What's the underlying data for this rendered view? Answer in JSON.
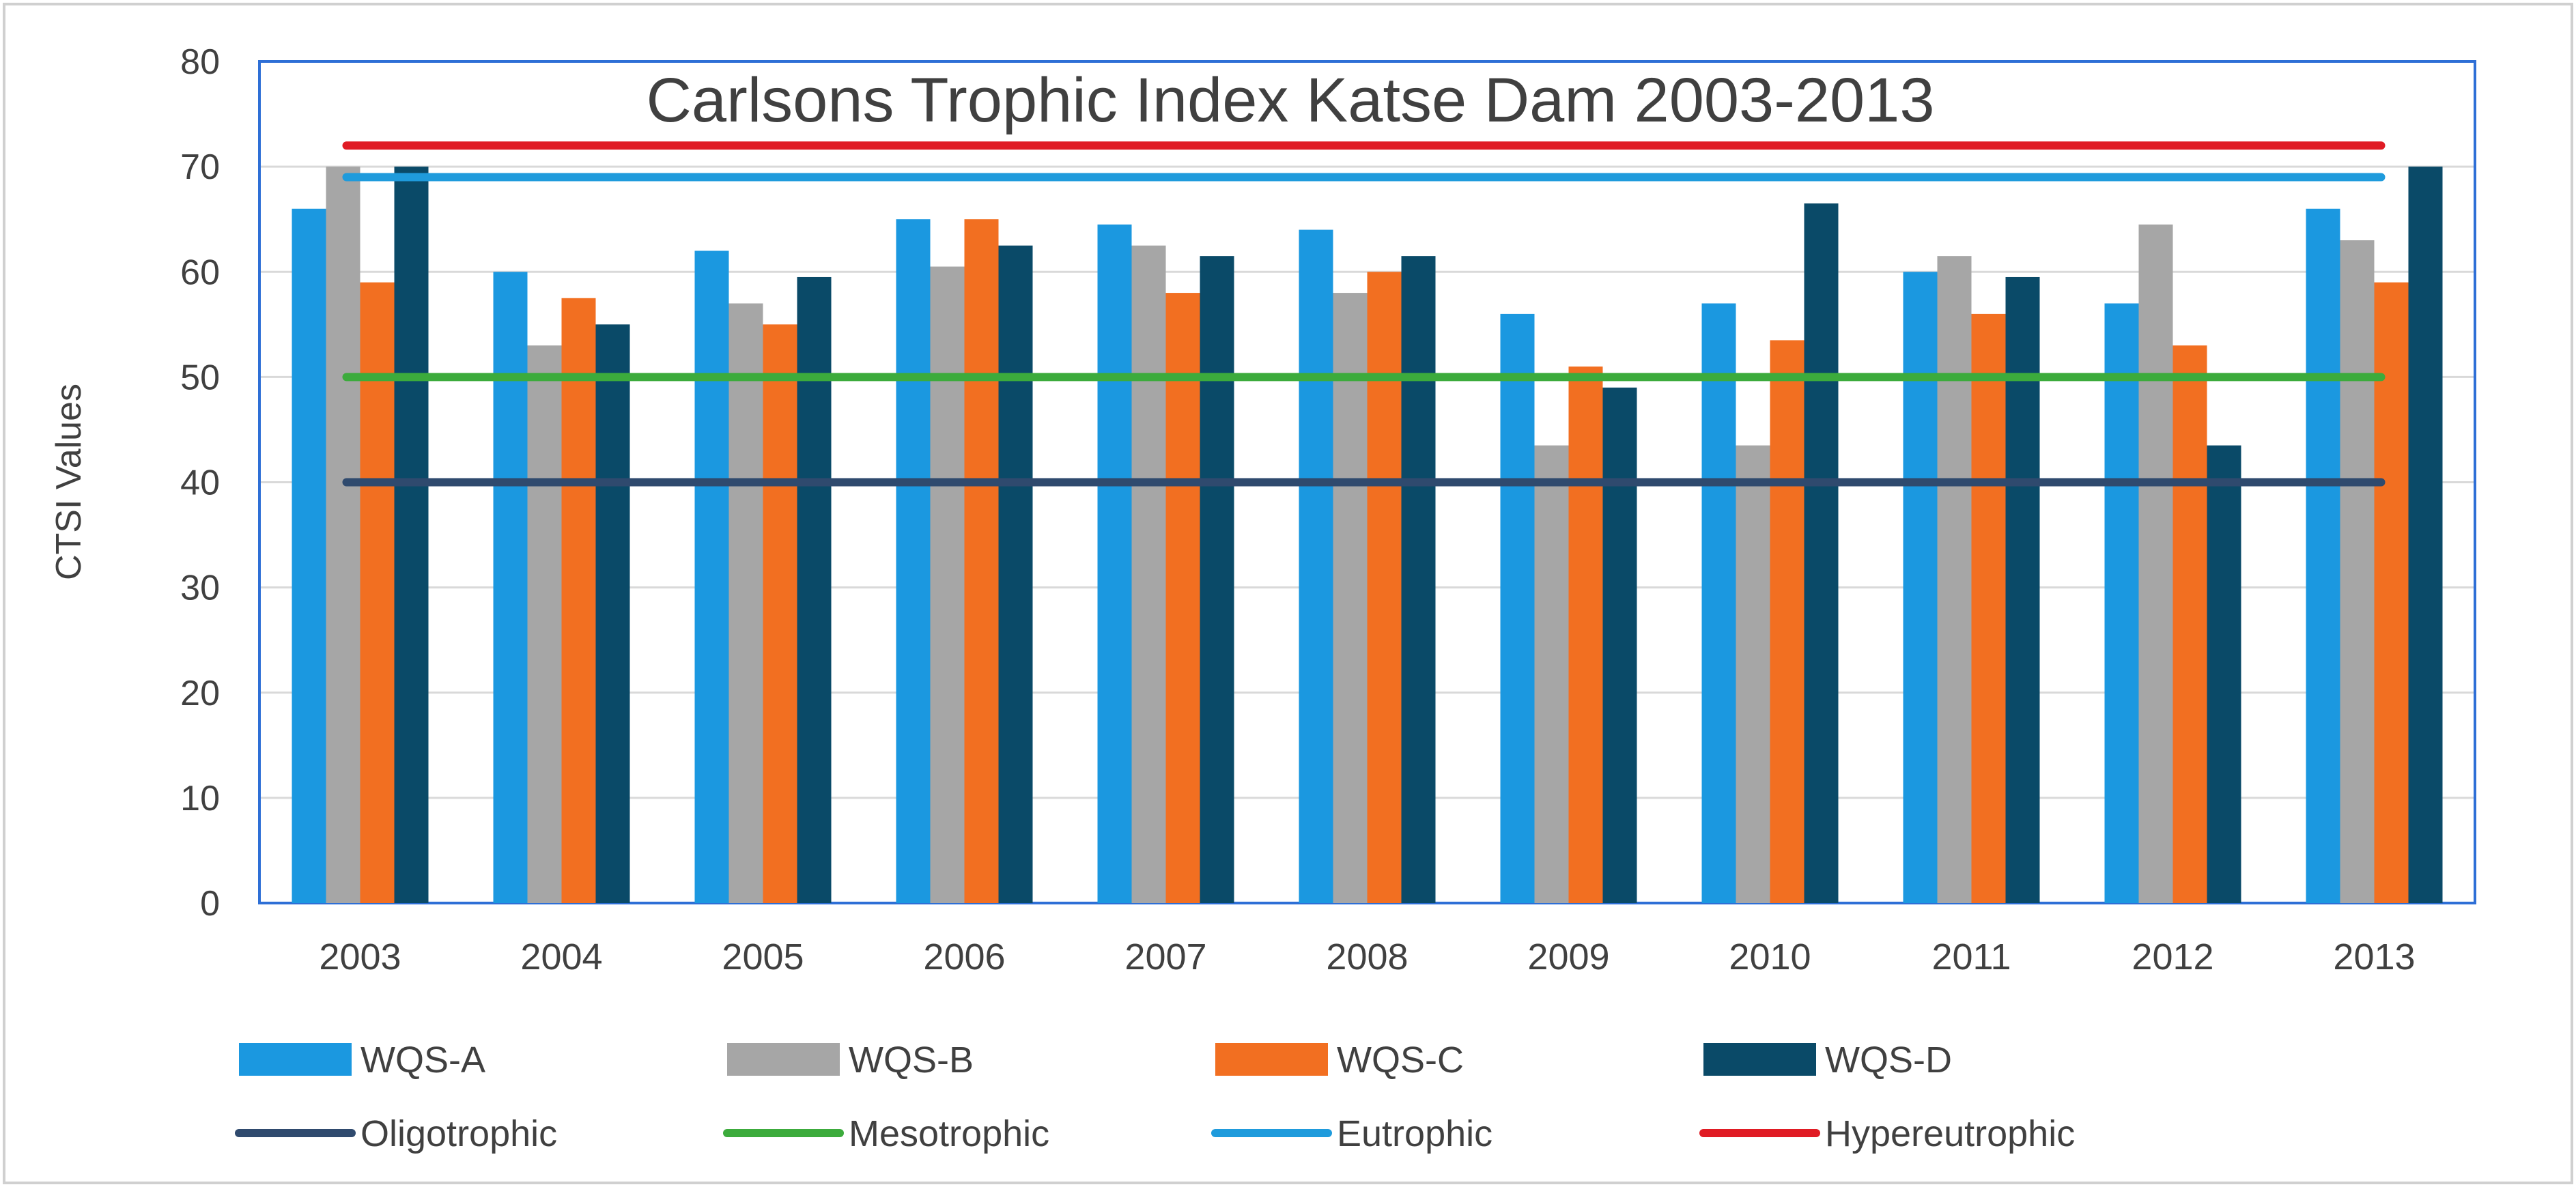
{
  "chart_data": {
    "type": "bar",
    "title": "Carlsons Trophic Index Katse Dam 2003-2013",
    "xlabel": "",
    "ylabel": "CTSI Values",
    "ylim": [
      0,
      80
    ],
    "yticks": [
      0,
      10,
      20,
      30,
      40,
      50,
      60,
      70,
      80
    ],
    "grid": true,
    "legend_position": "bottom",
    "categories": [
      "2003",
      "2004",
      "2005",
      "2006",
      "2007",
      "2008",
      "2009",
      "2010",
      "2011",
      "2012",
      "2013"
    ],
    "series": [
      {
        "name": "WQS-A",
        "color": "#1b98e0",
        "values": [
          66,
          60,
          62,
          65,
          64.5,
          64,
          56,
          57,
          60,
          57,
          66
        ]
      },
      {
        "name": "WQS-B",
        "color": "#a6a6a6",
        "values": [
          70,
          53,
          57,
          60.5,
          62.5,
          58,
          43.5,
          43.5,
          61.5,
          64.5,
          63
        ]
      },
      {
        "name": "WQS-C",
        "color": "#f26f21",
        "values": [
          59,
          57.5,
          55,
          65,
          58,
          60,
          51,
          53.5,
          56,
          53,
          59
        ]
      },
      {
        "name": "WQS-D",
        "color": "#0a4a68",
        "values": [
          70,
          55,
          59.5,
          62.5,
          61.5,
          61.5,
          49,
          66.5,
          59.5,
          43.5,
          70
        ]
      }
    ],
    "reference_lines": [
      {
        "name": "Oligotrophic",
        "color": "#2f4a6e",
        "value": 40
      },
      {
        "name": "Mesotrophic",
        "color": "#3cab3c",
        "value": 50
      },
      {
        "name": "Eutrophic",
        "color": "#1f9bdc",
        "value": 69
      },
      {
        "name": "Hypereutrophic",
        "color": "#e01b24",
        "value": 72
      }
    ]
  }
}
